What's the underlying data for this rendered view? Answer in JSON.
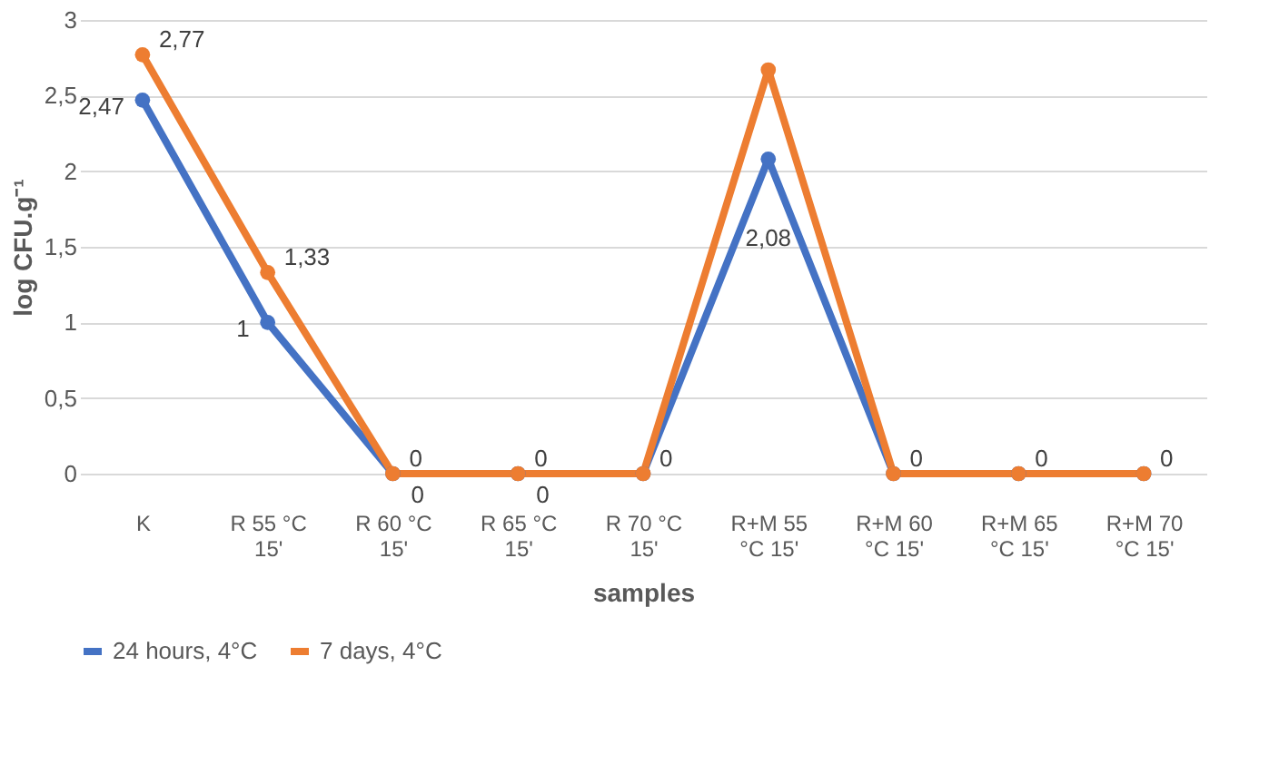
{
  "chart_data": {
    "type": "line",
    "xlabel": "samples",
    "ylabel": "log CFU.g⁻¹",
    "categories": [
      "K",
      "R 55 °C 15'",
      "R 60 °C 15'",
      "R 65 °C 15'",
      "R 70 °C 15'",
      "R+M 55 °C 15'",
      "R+M 60 °C 15'",
      "R+M 65 °C 15'",
      "R+M 70 °C 15'"
    ],
    "series": [
      {
        "name": "24 hours, 4°C",
        "color": "#4472c4",
        "values": [
          2.47,
          1,
          0,
          0,
          0,
          2.08,
          0,
          0,
          0
        ],
        "value_labels": [
          "2,47",
          "1",
          "0",
          "0",
          null,
          "2,08",
          null,
          null,
          null
        ]
      },
      {
        "name": "7 days, 4°C",
        "color": "#ed7d31",
        "values": [
          2.77,
          1.33,
          0,
          0,
          0,
          2.67,
          0,
          0,
          0
        ],
        "value_labels": [
          "2,77",
          "1,33",
          "0",
          "0",
          "0",
          null,
          "0",
          "0",
          "0"
        ]
      }
    ],
    "ylim": [
      0,
      3
    ],
    "yticks": [
      0,
      {
        "value": 0.5,
        "label": "0,5"
      },
      1,
      {
        "value": 1.5,
        "label": "1,5"
      },
      2,
      {
        "value": 2.5,
        "label": "2,5"
      },
      3
    ],
    "grid": "y",
    "legend": "bottom",
    "marker": "circle",
    "line_style": "solid"
  }
}
